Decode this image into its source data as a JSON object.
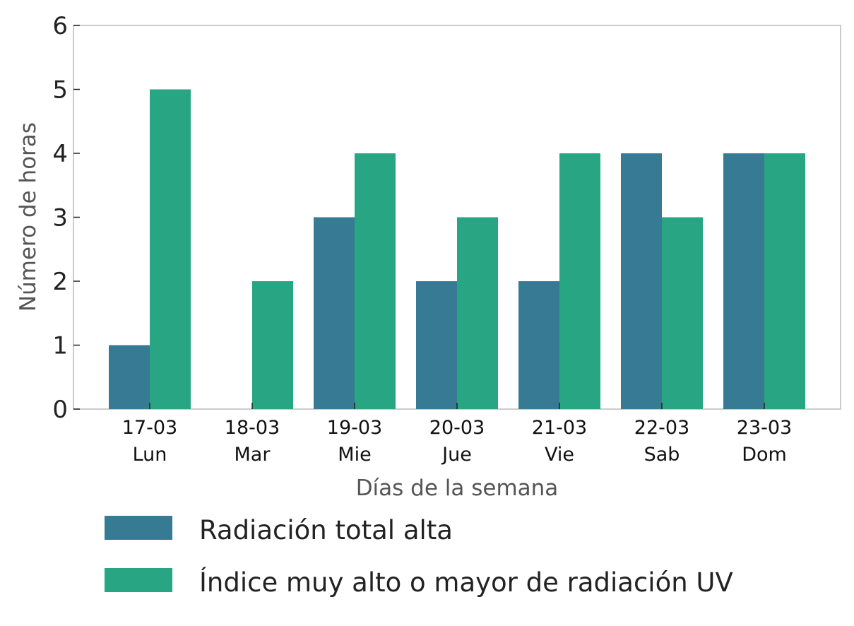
{
  "chart_data": {
    "type": "bar",
    "title": "",
    "xlabel": "Días de la semana",
    "ylabel": "Número de horas",
    "ylim": [
      0,
      6
    ],
    "yticks": [
      0,
      1,
      2,
      3,
      4,
      5,
      6
    ],
    "categories": [
      {
        "date": "17-03",
        "day": "Lun"
      },
      {
        "date": "18-03",
        "day": "Mar"
      },
      {
        "date": "19-03",
        "day": "Mie"
      },
      {
        "date": "20-03",
        "day": "Jue"
      },
      {
        "date": "21-03",
        "day": "Vie"
      },
      {
        "date": "22-03",
        "day": "Sab"
      },
      {
        "date": "23-03",
        "day": "Dom"
      }
    ],
    "series": [
      {
        "name": "Radiación total alta",
        "color": "#377a93",
        "values": [
          1,
          0,
          3,
          2,
          2,
          4,
          4
        ]
      },
      {
        "name": "Índice muy alto o mayor de radiación UV",
        "color": "#28a684",
        "values": [
          5,
          2,
          4,
          3,
          4,
          3,
          4
        ]
      }
    ],
    "grid": false,
    "legend_position": "bottom"
  }
}
